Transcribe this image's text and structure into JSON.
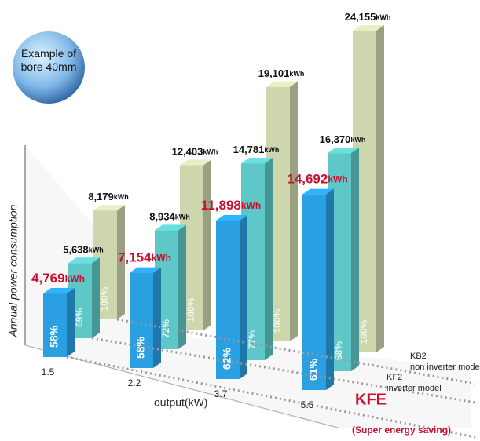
{
  "chart_data": {
    "type": "bar3d",
    "badge": "Example of bore 40mm",
    "y_label": "Annual power consumption",
    "x_label": "output(kW)",
    "categories": [
      "1.5",
      "2.2",
      "3.7",
      "5.5"
    ],
    "series": [
      {
        "name": "KFE",
        "subtitle": "(Super energy saving)",
        "color": "#2aa0e2",
        "values": [
          4769,
          7154,
          11898,
          14692
        ],
        "value_labels": [
          "4,769kWh",
          "7,154kWh",
          "11,898kWh",
          "14,692kWh"
        ],
        "ratio_labels": [
          "58%",
          "58%",
          "62%",
          "61%"
        ]
      },
      {
        "name": "KF2",
        "subtitle": "inverter model",
        "color": "#5ec8c8",
        "values": [
          5638,
          8934,
          14781,
          16370
        ],
        "value_labels": [
          "5,638kWh",
          "8,934kWh",
          "14,781kWh",
          "16,370kWh"
        ],
        "ratio_labels": [
          "69%",
          "72%",
          "77%",
          "68%"
        ]
      },
      {
        "name": "KB2",
        "subtitle": "non inverter mode",
        "color": "#cdd6ad",
        "values": [
          8179,
          12403,
          19101,
          24155
        ],
        "value_labels": [
          "8,179kWh",
          "12,403kWh",
          "19,101kWh",
          "24,155kWh"
        ],
        "ratio_labels": [
          "100%",
          "100%",
          "100%",
          "100%"
        ]
      }
    ]
  }
}
